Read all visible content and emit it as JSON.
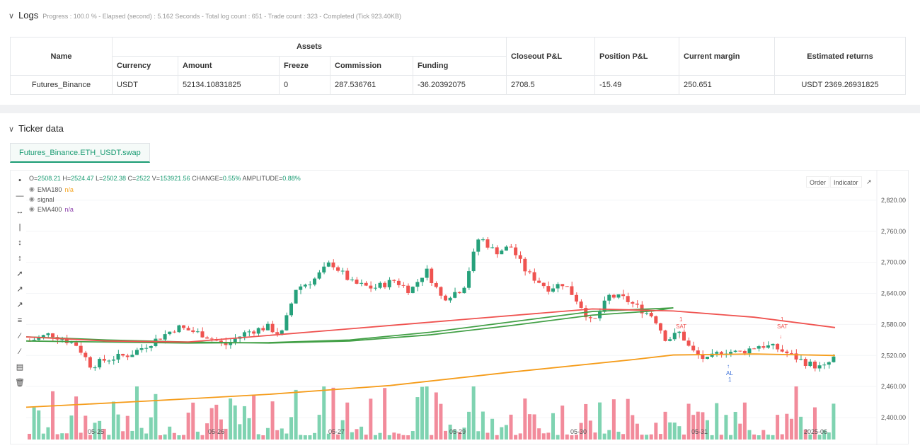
{
  "logs": {
    "title": "Logs",
    "summary": "Progress : 100.0 % - Elapsed (second) : 5.162  Seconds - Total log count : 651 - Trade count : 323 - Completed (Tick 923.40KB)",
    "table": {
      "h_name": "Name",
      "h_assets": "Assets",
      "h_currency": "Currency",
      "h_amount": "Amount",
      "h_freeze": "Freeze",
      "h_commission": "Commission",
      "h_funding": "Funding",
      "h_closeout": "Closeout P&L",
      "h_position": "Position P&L",
      "h_margin": "Current margin",
      "h_returns": "Estimated returns",
      "row": {
        "name": "Futures_Binance",
        "currency": "USDT",
        "amount": "52134.10831825",
        "freeze": "0",
        "commission": "287.536761",
        "funding": "-36.20392075",
        "closeout": "2708.5",
        "position": "-15.49",
        "margin": "250.651",
        "returns": "USDT 2369.26931825"
      }
    }
  },
  "ticker": {
    "title": "Ticker data",
    "tab": "Futures_Binance.ETH_USDT.swap",
    "ohlc": {
      "o_label": "O=",
      "o": "2508.21",
      "h_label": "H=",
      "h": "2524.47",
      "l_label": "L=",
      "l": "2502.38",
      "c_label": "C=",
      "c": "2522",
      "v_label": "V=",
      "v": "153921.56",
      "chg_label": "CHANGE=",
      "chg": "0.55%",
      "amp_label": "AMPLITUDE=",
      "amp": "0.88%"
    },
    "legend": {
      "ema180": "EMA180",
      "ema180_val": "n/a",
      "signal": "signal",
      "ema400": "EMA400",
      "ema400_val": "n/a"
    },
    "buttons": {
      "order": "Order",
      "indicator": "Indicator"
    },
    "tools": [
      "cursor-icon",
      "hline-icon",
      "hray-icon",
      "vline-icon",
      "vline2-icon",
      "vline3-icon",
      "trend-icon",
      "ray-icon",
      "extended-icon",
      "fib-icon",
      "parallel-icon",
      "pitchfork-icon",
      "measure-icon",
      "trash-icon"
    ]
  },
  "chart_data": {
    "type": "candlestick",
    "y_ticks": [
      "2,820.00",
      "2,760.00",
      "2,700.00",
      "2,640.00",
      "2,580.00",
      "2,520.00",
      "2,460.00",
      "2,400.00"
    ],
    "y_range": [
      2385,
      2850
    ],
    "x_ticks": [
      "05-25",
      "05-26",
      "05-27",
      "05-29",
      "05-30",
      "05-31",
      "2025-06"
    ],
    "signals": [
      {
        "label": "SAT",
        "num": "1",
        "type": "sell"
      },
      {
        "label": "AL",
        "num": "1",
        "type": "buy"
      },
      {
        "label": "SAT",
        "num": "1",
        "type": "sell"
      }
    ],
    "colors": {
      "up": "#26a17b",
      "down": "#ef5350",
      "up_vol": "#7fd3b1",
      "down_vol": "#f28b9b",
      "ema_green": "#43a047",
      "ema_red": "#ef5350",
      "ema_orange": "#f59c1a"
    }
  }
}
